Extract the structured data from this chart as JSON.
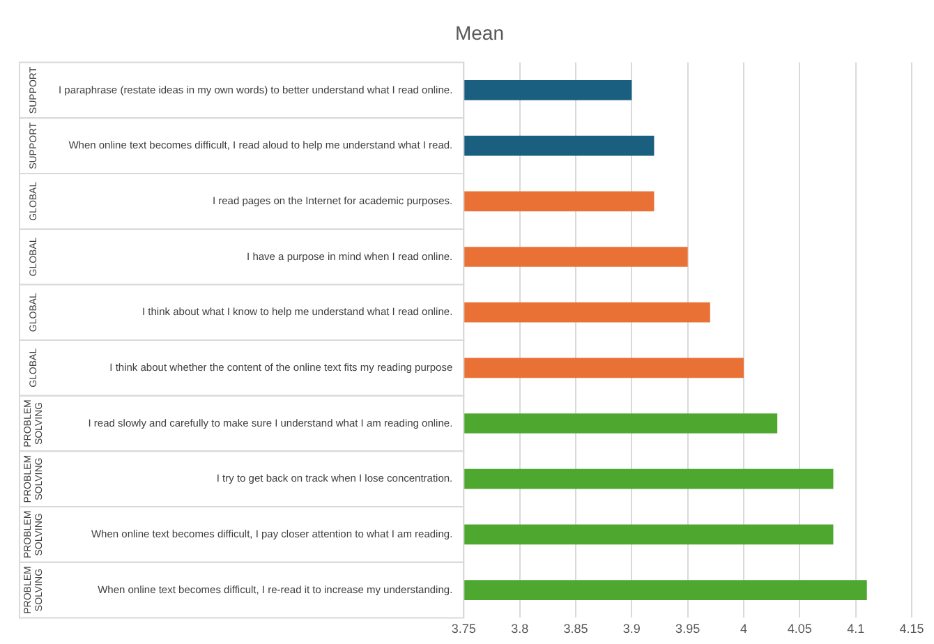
{
  "chart_data": {
    "type": "bar",
    "orientation": "horizontal",
    "title": "Mean",
    "categories": [
      "I paraphrase (restate ideas in my own words) to better understand what I read online.",
      "When online text becomes difficult, I read aloud to help me understand what I read.",
      "I read pages on the Internet for academic purposes.",
      "I have a purpose in mind when I read online.",
      "I think about what I know to help me understand what I read online.",
      "I think about whether the content of the online text fits my reading purpose",
      "I read slowly and carefully to make sure I understand what I am reading online.",
      "I try to get back on track when I lose concentration.",
      "When online text becomes difficult, I pay closer attention to what I am reading.",
      "When online text becomes difficult, I re-read it to increase my understanding."
    ],
    "values": [
      3.9,
      3.92,
      3.92,
      3.95,
      3.97,
      4.0,
      4.03,
      4.08,
      4.08,
      4.11
    ],
    "colors": [
      "#1a5e80",
      "#1a5e80",
      "#ea7135",
      "#ea7135",
      "#ea7135",
      "#ea7135",
      "#4ea72e",
      "#4ea72e",
      "#4ea72e",
      "#4ea72e"
    ],
    "xlim": [
      3.75,
      4.15
    ],
    "xticks": [
      3.75,
      3.8,
      3.85,
      3.9,
      3.95,
      4,
      4.05,
      4.1,
      4.15
    ],
    "annotations": [
      "SUPPORT",
      "SUPPORT",
      "GLOBAL",
      "GLOBAL",
      "GLOBAL",
      "GLOBAL",
      "PROBLEM SOLVING",
      "PROBLEM SOLVING",
      "PROBLEM SOLVING",
      "PROBLEM SOLVING"
    ],
    "grid": "x",
    "legend": false
  }
}
